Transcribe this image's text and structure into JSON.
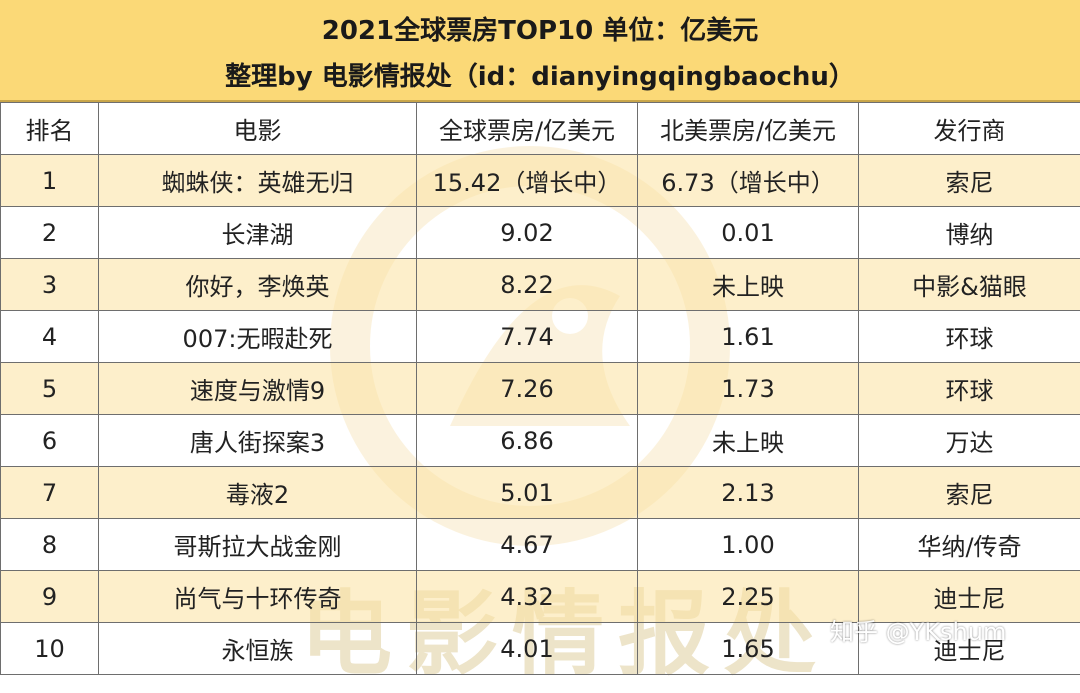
{
  "title": {
    "line1": "2021全球票房TOP10 单位：亿美元",
    "line2": "整理by 电影情报处（id：dianyingqingbaochu）"
  },
  "columns": [
    "排名",
    "电影",
    "全球票房/亿美元",
    "北美票房/亿美元",
    "发行商"
  ],
  "rows": [
    {
      "rank": "1",
      "film": "蜘蛛侠：英雄无归",
      "global": "15.42（增长中）",
      "na": "6.73（增长中）",
      "distributor": "索尼"
    },
    {
      "rank": "2",
      "film": "长津湖",
      "global": "9.02",
      "na": "0.01",
      "distributor": "博纳"
    },
    {
      "rank": "3",
      "film": "你好，李焕英",
      "global": "8.22",
      "na": "未上映",
      "distributor": "中影&猫眼"
    },
    {
      "rank": "4",
      "film": "007:无暇赴死",
      "global": "7.74",
      "na": "1.61",
      "distributor": "环球"
    },
    {
      "rank": "5",
      "film": "速度与激情9",
      "global": "7.26",
      "na": "1.73",
      "distributor": "环球"
    },
    {
      "rank": "6",
      "film": "唐人街探案3",
      "global": "6.86",
      "na": "未上映",
      "distributor": "万达"
    },
    {
      "rank": "7",
      "film": "毒液2",
      "global": "5.01",
      "na": "2.13",
      "distributor": "索尼"
    },
    {
      "rank": "8",
      "film": "哥斯拉大战金刚",
      "global": "4.67",
      "na": "1.00",
      "distributor": "华纳/传奇"
    },
    {
      "rank": "9",
      "film": "尚气与十环传奇",
      "global": "4.32",
      "na": "2.25",
      "distributor": "迪士尼"
    },
    {
      "rank": "10",
      "film": "永恒族",
      "global": "4.01",
      "na": "1.65",
      "distributor": "迪士尼"
    }
  ],
  "watermark": {
    "text": "电影情报处",
    "credit": "知乎 @YKshum"
  },
  "colors": {
    "header_bg": "#fbd977",
    "stripe": "#fbe2a0",
    "border": "#6e6e6e"
  }
}
